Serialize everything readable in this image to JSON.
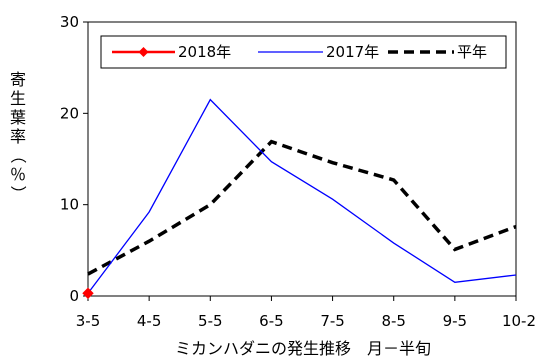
{
  "chart_data": {
    "type": "line",
    "categories": [
      "3-5",
      "4-5",
      "5-5",
      "6-5",
      "7-5",
      "8-5",
      "9-5",
      "10-2"
    ],
    "xlabel": "ミカンハダニの発生推移　月－半旬",
    "ylabel": "寄生葉率（％）",
    "ylim": [
      0,
      30
    ],
    "yticks": [
      "0",
      "10",
      "20",
      "30"
    ],
    "grid": false,
    "legend_position": "top",
    "series": [
      {
        "name": "2018年",
        "values": [
          0.3,
          null,
          null,
          null,
          null,
          null,
          null,
          null
        ],
        "color": "#ff0000",
        "style": "solid-diamond"
      },
      {
        "name": "2017年",
        "values": [
          0.3,
          9.2,
          21.5,
          14.7,
          10.6,
          5.8,
          1.5,
          2.3
        ],
        "color": "#0000ff",
        "style": "solid-thin"
      },
      {
        "name": "平年",
        "values": [
          2.4,
          6.0,
          10.0,
          16.9,
          14.6,
          12.7,
          5.1,
          7.6
        ],
        "color": "#000000",
        "style": "dashed-thick"
      }
    ]
  }
}
